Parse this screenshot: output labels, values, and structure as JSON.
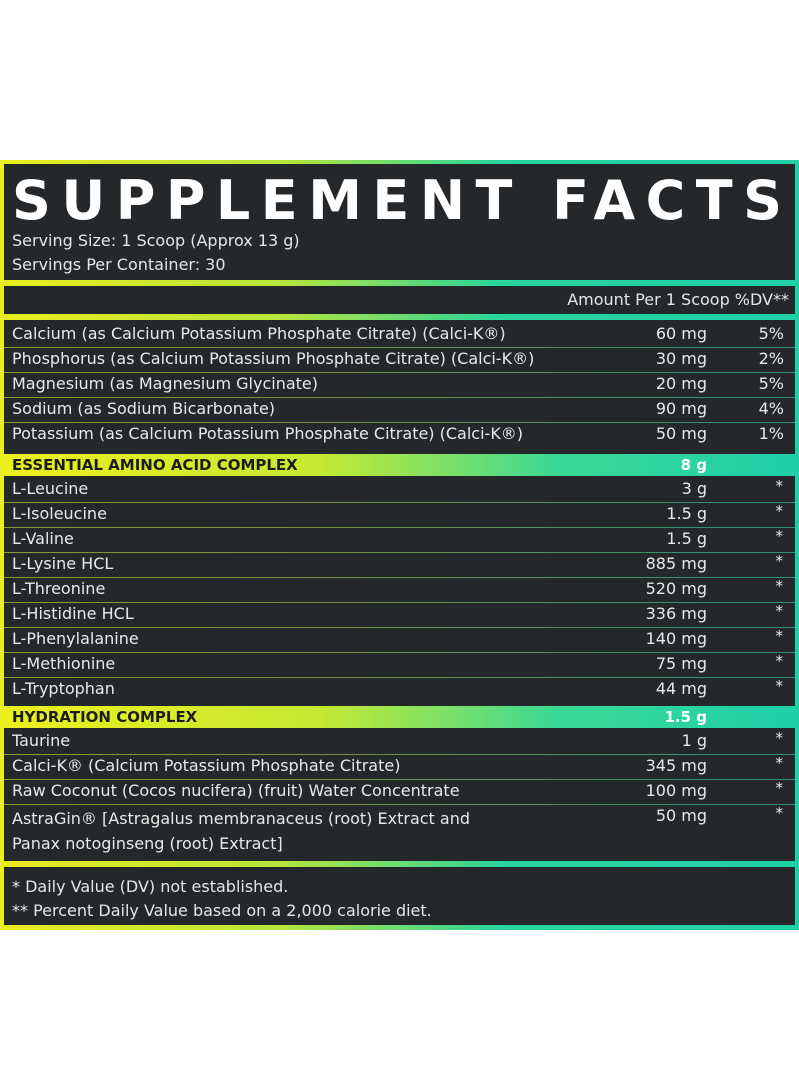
{
  "title": "SUPPLEMENT FACTS",
  "serving_size": "Serving Size: 1 Scoop (Approx 13 g)",
  "servings_per_container": "Servings Per Container: 30",
  "amount_header": "Amount Per 1 Scoop  %DV**",
  "minerals": [
    {
      "name": "Calcium (as Calcium Potassium Phosphate Citrate) (Calci-K®)",
      "amount": "60 mg",
      "dv": "5%"
    },
    {
      "name": "Phosphorus (as Calcium Potassium Phosphate Citrate) (Calci-K®)",
      "amount": "30 mg",
      "dv": "2%"
    },
    {
      "name": "Magnesium (as Magnesium Glycinate)",
      "amount": "20 mg",
      "dv": "5%"
    },
    {
      "name": "Sodium (as Sodium Bicarbonate)",
      "amount": "90 mg",
      "dv": "4%"
    },
    {
      "name": "Potassium (as Calcium Potassium Phosphate Citrate) (Calci-K®)",
      "amount": "50 mg",
      "dv": "1%"
    }
  ],
  "eaa_section": {
    "name": "ESSENTIAL AMINO ACID COMPLEX",
    "amount": "8 g"
  },
  "eaa_items": [
    {
      "name": "L-Leucine",
      "amount": "3 g",
      "dv": "*"
    },
    {
      "name": "L-Isoleucine",
      "amount": "1.5 g",
      "dv": "*"
    },
    {
      "name": "L-Valine",
      "amount": "1.5 g",
      "dv": "*"
    },
    {
      "name": "L-Lysine HCL",
      "amount": "885 mg",
      "dv": "*"
    },
    {
      "name": "L-Threonine",
      "amount": "520 mg",
      "dv": "*"
    },
    {
      "name": "L-Histidine HCL",
      "amount": "336 mg",
      "dv": "*"
    },
    {
      "name": "L-Phenylalanine",
      "amount": "140 mg",
      "dv": "*"
    },
    {
      "name": "L-Methionine",
      "amount": "75 mg",
      "dv": "*"
    },
    {
      "name": "L-Tryptophan",
      "amount": "44 mg",
      "dv": "*"
    }
  ],
  "hydration_section": {
    "name": "HYDRATION COMPLEX",
    "amount": "1.5 g"
  },
  "hydration_items": [
    {
      "name": "Taurine",
      "amount": "1 g",
      "dv": "*"
    },
    {
      "name": "Calci-K® (Calcium Potassium Phosphate Citrate)",
      "amount": "345 mg",
      "dv": "*"
    },
    {
      "name": "Raw Coconut (Cocos nucifera) (fruit) Water Concentrate",
      "amount": "100 mg",
      "dv": "*"
    },
    {
      "name": "AstraGin® [Astragalus membranaceus (root) Extract and Panax notoginseng (root) Extract]",
      "amount": "50 mg",
      "dv": "*"
    }
  ],
  "footnotes": [
    "* Daily Value (DV) not established.",
    "** Percent Daily Value based on a 2,000 calorie diet."
  ],
  "colors": {
    "panel_bg": "#24282a",
    "gradient_yellow": "#e8ee1f",
    "gradient_green": "#b9e53a",
    "gradient_teal": "#1fcfa8",
    "text": "#e9e9e9"
  }
}
